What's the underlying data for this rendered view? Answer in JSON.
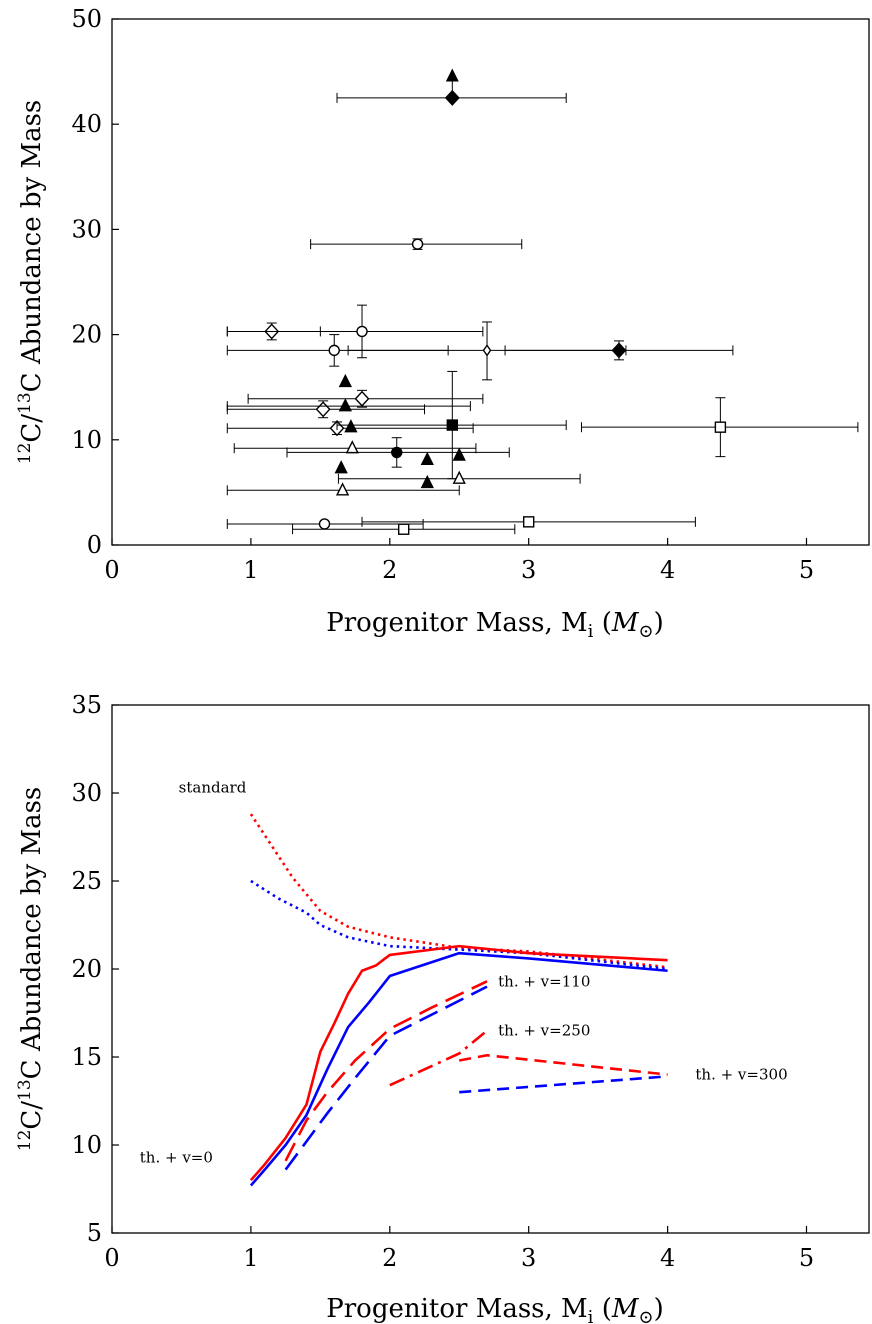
{
  "chart_data": [
    {
      "type": "scatter",
      "xlabel": "Progenitor Mass, M_i (M_⊙)",
      "ylabel": "12C/13C Abundance by Mass",
      "xlim": [
        0,
        5.45
      ],
      "ylim": [
        0,
        50
      ],
      "xticks": [
        "0",
        "1",
        "2",
        "3",
        "4",
        "5"
      ],
      "yticks": [
        "0",
        "10",
        "20",
        "30",
        "40",
        "50"
      ],
      "points": [
        {
          "x": 2.45,
          "y": 42.5,
          "marker": "diamond-filled",
          "xerr": [
            1.62,
            3.27
          ],
          "yerr": [
            42.5,
            42.5
          ],
          "limit": "up"
        },
        {
          "x": 2.2,
          "y": 28.6,
          "marker": "circle-open",
          "xerr": [
            1.43,
            2.95
          ],
          "yerr": [
            28.1,
            29.1
          ]
        },
        {
          "x": 1.15,
          "y": 20.3,
          "marker": "diamond-open",
          "xerr": [
            0.83,
            1.5
          ],
          "yerr": [
            19.5,
            21.1
          ]
        },
        {
          "x": 1.8,
          "y": 20.3,
          "marker": "circle-open",
          "xerr": [
            0.83,
            2.67
          ],
          "yerr": [
            17.8,
            22.8
          ]
        },
        {
          "x": 1.6,
          "y": 18.5,
          "marker": "circle-open",
          "xerr": [
            0.83,
            2.42
          ],
          "yerr": [
            17.0,
            20.0
          ]
        },
        {
          "x": 2.7,
          "y": 18.5,
          "marker": "diamond-open-small",
          "xerr": [
            1.7,
            3.7
          ],
          "yerr": [
            15.7,
            21.2
          ]
        },
        {
          "x": 3.65,
          "y": 18.5,
          "marker": "diamond-filled",
          "xerr": [
            2.83,
            4.47
          ],
          "yerr": [
            17.6,
            19.4
          ]
        },
        {
          "x": 1.68,
          "y": 15.5,
          "marker": "triangle-filled",
          "xerr": [
            1.68,
            1.68
          ],
          "yerr": [
            15.5,
            15.5
          ]
        },
        {
          "x": 1.8,
          "y": 13.9,
          "marker": "diamond-open",
          "xerr": [
            0.98,
            2.67
          ],
          "yerr": [
            13.1,
            14.7
          ]
        },
        {
          "x": 1.52,
          "y": 12.9,
          "marker": "diamond-open",
          "xerr": [
            0.83,
            2.25
          ],
          "yerr": [
            12.1,
            13.7
          ]
        },
        {
          "x": 1.68,
          "y": 13.2,
          "marker": "triangle-filled",
          "xerr": [
            0.83,
            2.58
          ],
          "yerr": [
            13.2,
            13.2
          ]
        },
        {
          "x": 1.62,
          "y": 11.1,
          "marker": "diamond-open",
          "xerr": [
            0.83,
            2.6
          ],
          "yerr": [
            10.5,
            11.7
          ]
        },
        {
          "x": 1.72,
          "y": 11.2,
          "marker": "triangle-filled",
          "xerr": [
            1.72,
            1.72
          ],
          "yerr": [
            11.2,
            11.2
          ]
        },
        {
          "x": 2.45,
          "y": 11.4,
          "marker": "square-filled",
          "xerr": [
            1.62,
            3.27
          ],
          "yerr": [
            6.3,
            16.5
          ]
        },
        {
          "x": 4.38,
          "y": 11.2,
          "marker": "square-open",
          "xerr": [
            3.38,
            5.37
          ],
          "yerr": [
            8.4,
            14.0
          ]
        },
        {
          "x": 1.73,
          "y": 9.2,
          "marker": "triangle-open",
          "xerr": [
            0.88,
            2.62
          ],
          "yerr": [
            9.2,
            9.2
          ]
        },
        {
          "x": 2.05,
          "y": 8.8,
          "marker": "circle-filled",
          "xerr": [
            1.26,
            2.86
          ],
          "yerr": [
            7.4,
            10.2
          ]
        },
        {
          "x": 2.27,
          "y": 8.1,
          "marker": "triangle-filled",
          "xerr": [
            2.27,
            2.27
          ],
          "yerr": [
            8.1,
            8.1
          ]
        },
        {
          "x": 2.5,
          "y": 8.5,
          "marker": "triangle-filled",
          "xerr": [
            2.5,
            2.5
          ],
          "yerr": [
            8.5,
            8.5
          ]
        },
        {
          "x": 1.65,
          "y": 7.3,
          "marker": "triangle-filled",
          "xerr": [
            1.65,
            1.65
          ],
          "yerr": [
            7.3,
            7.3
          ]
        },
        {
          "x": 2.27,
          "y": 5.9,
          "marker": "triangle-filled",
          "xerr": [
            2.27,
            2.27
          ],
          "yerr": [
            5.9,
            5.9
          ]
        },
        {
          "x": 2.5,
          "y": 6.3,
          "marker": "triangle-open",
          "xerr": [
            1.63,
            3.37
          ],
          "yerr": [
            6.3,
            6.3
          ]
        },
        {
          "x": 1.66,
          "y": 5.2,
          "marker": "triangle-open",
          "xerr": [
            0.83,
            2.5
          ],
          "yerr": [
            5.2,
            5.2
          ]
        },
        {
          "x": 1.53,
          "y": 2.0,
          "marker": "circle-open",
          "xerr": [
            0.83,
            2.24
          ],
          "yerr": [
            2.0,
            2.0
          ]
        },
        {
          "x": 3.0,
          "y": 2.2,
          "marker": "square-open",
          "xerr": [
            1.8,
            4.2
          ],
          "yerr": [
            2.2,
            2.2
          ]
        },
        {
          "x": 2.1,
          "y": 1.5,
          "marker": "square-open",
          "xerr": [
            1.3,
            2.9
          ],
          "yerr": [
            1.5,
            1.5
          ]
        }
      ]
    },
    {
      "type": "line",
      "xlabel": "Progenitor Mass, M_i (M_⊙)",
      "ylabel": "12C/13C Abundance by Mass",
      "xlim": [
        0,
        5.45
      ],
      "ylim": [
        5,
        35
      ],
      "xticks": [
        "0",
        "1",
        "2",
        "3",
        "4",
        "5"
      ],
      "yticks": [
        "5",
        "10",
        "15",
        "20",
        "25",
        "30",
        "35"
      ],
      "series": [
        {
          "color": "#ff0000",
          "style": "dotted",
          "x": [
            1.0,
            1.15,
            1.3,
            1.5,
            1.7,
            2.0,
            2.5,
            3.0,
            4.0
          ],
          "y": [
            28.8,
            27.0,
            25.2,
            23.3,
            22.4,
            21.8,
            21.2,
            21.0,
            20.1
          ]
        },
        {
          "color": "#0000ff",
          "style": "dotted",
          "x": [
            1.0,
            1.2,
            1.4,
            1.5,
            1.7,
            2.0,
            2.5,
            3.0,
            4.0
          ],
          "y": [
            25.0,
            24.0,
            23.2,
            22.5,
            21.8,
            21.3,
            21.1,
            20.9,
            20.0
          ]
        },
        {
          "color": "#ff0000",
          "style": "solid",
          "x": [
            1.0,
            1.1,
            1.25,
            1.4,
            1.5,
            1.6,
            1.7,
            1.8,
            1.9,
            1.95,
            2.0,
            2.5,
            3.0,
            4.0
          ],
          "y": [
            8.0,
            8.9,
            10.4,
            12.3,
            15.3,
            16.9,
            18.6,
            19.9,
            20.2,
            20.5,
            20.8,
            21.3,
            20.9,
            20.5
          ]
        },
        {
          "color": "#0000ff",
          "style": "solid",
          "x": [
            1.0,
            1.1,
            1.25,
            1.4,
            1.55,
            1.7,
            1.85,
            2.0,
            2.5,
            3.0,
            4.0
          ],
          "y": [
            7.7,
            8.6,
            10.0,
            11.7,
            14.3,
            16.7,
            18.1,
            19.6,
            20.9,
            20.6,
            19.9
          ]
        },
        {
          "color": "#ff0000",
          "style": "long-dash",
          "x": [
            1.25,
            1.4,
            1.55,
            1.75,
            2.0,
            2.3,
            2.7
          ],
          "y": [
            9.1,
            11.4,
            13.0,
            14.8,
            16.6,
            17.8,
            19.3
          ]
        },
        {
          "color": "#0000ff",
          "style": "long-dash",
          "x": [
            1.25,
            1.4,
            1.55,
            1.75,
            2.0,
            2.3,
            2.7
          ],
          "y": [
            8.6,
            10.2,
            11.8,
            13.8,
            16.2,
            17.4,
            19.0
          ]
        },
        {
          "color": "#ff0000",
          "style": "dash-dot",
          "x": [
            2.0,
            2.5,
            2.7
          ],
          "y": [
            13.4,
            15.2,
            16.5
          ]
        },
        {
          "color": "#ff0000",
          "style": "dashed",
          "x": [
            2.5,
            2.7,
            4.0
          ],
          "y": [
            14.8,
            15.1,
            14.0
          ]
        },
        {
          "color": "#0000ff",
          "style": "dashed",
          "x": [
            2.5,
            4.0
          ],
          "y": [
            13.0,
            13.9
          ]
        }
      ],
      "annotations": [
        {
          "text": "standard",
          "x": 0.48,
          "y": 30.3
        },
        {
          "text": "th. + v=110",
          "x": 2.78,
          "y": 19.3
        },
        {
          "text": "th. + v=250",
          "x": 2.78,
          "y": 16.5
        },
        {
          "text": "th. + v=300",
          "x": 4.2,
          "y": 14.0
        },
        {
          "text": "th. + v=0",
          "x": 0.2,
          "y": 9.3
        }
      ]
    }
  ],
  "labels": {
    "ylabel_sup1": "12",
    "ylabel_c1": "C/",
    "ylabel_sup2": "13",
    "ylabel_rest": "C Abundance by Mass",
    "xlabel_main": "Progenitor Mass, M",
    "xlabel_sub": "i",
    "xlabel_open": " (",
    "xlabel_M": "M",
    "xlabel_sun": "⊙",
    "xlabel_close": ")"
  }
}
